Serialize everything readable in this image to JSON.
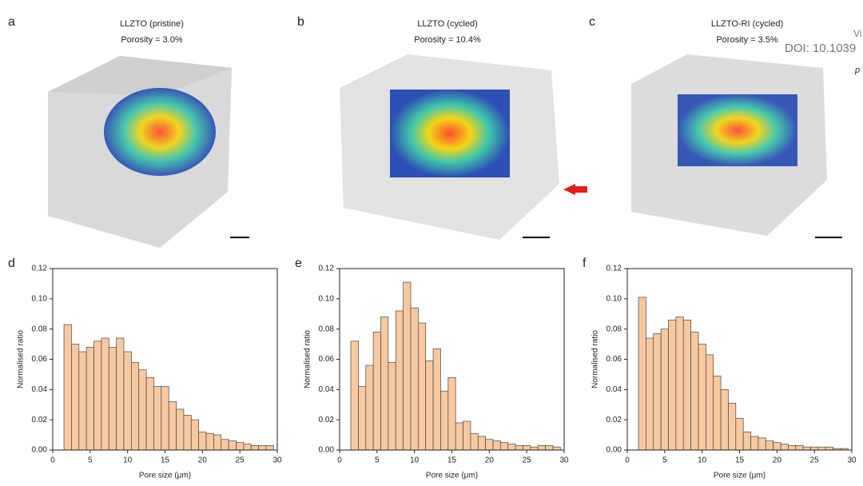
{
  "image_panels": [
    {
      "letter": "a",
      "title": "LLZTO (pristine)",
      "subtitle": "Porosity = 3.0%"
    },
    {
      "letter": "b",
      "title": "LLZTO (cycled)",
      "subtitle": "Porosity = 10.4%"
    },
    {
      "letter": "c",
      "title": "LLZTO-RI (cycled)",
      "subtitle": "Porosity = 3.5%"
    }
  ],
  "watermark": {
    "line1": "Vi",
    "line2": "DOI: 10.1039",
    "line3": "p"
  },
  "chart_data": [
    {
      "type": "histogram",
      "panel": "d",
      "xlabel": "Pore size (μm)",
      "ylabel": "Normalised ratio",
      "color": "#f8c9a0",
      "bins": [
        1.5,
        2.5,
        3.5,
        4.5,
        5.5,
        6.5,
        7.5,
        8.5,
        9.5,
        10.5,
        11.5,
        12.5,
        13.5,
        14.5,
        15.5,
        16.5,
        17.5,
        18.5,
        19.5,
        20.5,
        21.5,
        22.5,
        23.5,
        24.5,
        25.5,
        26.5,
        27.5,
        28.5,
        29.5
      ],
      "values": [
        0.083,
        0.07,
        0.065,
        0.068,
        0.072,
        0.074,
        0.068,
        0.074,
        0.065,
        0.058,
        0.053,
        0.048,
        0.042,
        0.042,
        0.032,
        0.027,
        0.023,
        0.02,
        0.012,
        0.011,
        0.01,
        0.007,
        0.006,
        0.005,
        0.004,
        0.003,
        0.003,
        0.003
      ],
      "xlim": [
        0,
        30
      ],
      "xticks": [
        0,
        5,
        10,
        15,
        20,
        25,
        30
      ],
      "ylim": [
        0,
        0.12
      ],
      "yticks": [
        {
          "value": 0,
          "label": "0.00"
        },
        {
          "value": 0.02,
          "label": "0.02"
        },
        {
          "value": 0.04,
          "label": "0.04"
        },
        {
          "value": 0.06,
          "label": "0.06"
        },
        {
          "value": 0.08,
          "label": "0.08"
        },
        {
          "value": 0.1,
          "label": "0.10"
        },
        {
          "value": 0.12,
          "label": "0.12"
        }
      ]
    },
    {
      "type": "histogram",
      "panel": "e",
      "xlabel": "Pore size (μm)",
      "ylabel": "Normalised ratio",
      "color": "#f8c9a0",
      "bins": [
        1.5,
        2.5,
        3.5,
        4.5,
        5.5,
        6.5,
        7.5,
        8.5,
        9.5,
        10.5,
        11.5,
        12.5,
        13.5,
        14.5,
        15.5,
        16.5,
        17.5,
        18.5,
        19.5,
        20.5,
        21.5,
        22.5,
        23.5,
        24.5,
        25.5,
        26.5,
        27.5,
        28.5,
        29.5
      ],
      "values": [
        0.072,
        0.042,
        0.056,
        0.078,
        0.088,
        0.058,
        0.092,
        0.111,
        0.094,
        0.084,
        0.059,
        0.067,
        0.039,
        0.048,
        0.018,
        0.019,
        0.011,
        0.009,
        0.007,
        0.006,
        0.005,
        0.004,
        0.003,
        0.003,
        0.002,
        0.003,
        0.003,
        0.002
      ],
      "xlim": [
        0,
        30
      ],
      "xticks": [
        0,
        5,
        10,
        15,
        20,
        25,
        30
      ],
      "ylim": [
        0,
        0.12
      ],
      "yticks": [
        {
          "value": 0,
          "label": "0.00"
        },
        {
          "value": 0.02,
          "label": "0.02"
        },
        {
          "value": 0.04,
          "label": "0.04"
        },
        {
          "value": 0.06,
          "label": "0.06"
        },
        {
          "value": 0.08,
          "label": "0.08"
        },
        {
          "value": 0.1,
          "label": "0.10"
        },
        {
          "value": 0.12,
          "label": "0.12"
        }
      ]
    },
    {
      "type": "histogram",
      "panel": "f",
      "xlabel": "Pore size (μm)",
      "ylabel": "Normalised ratio",
      "color": "#f8c9a0",
      "bins": [
        1.5,
        2.5,
        3.5,
        4.5,
        5.5,
        6.5,
        7.5,
        8.5,
        9.5,
        10.5,
        11.5,
        12.5,
        13.5,
        14.5,
        15.5,
        16.5,
        17.5,
        18.5,
        19.5,
        20.5,
        21.5,
        22.5,
        23.5,
        24.5,
        25.5,
        26.5,
        27.5,
        28.5,
        29.5
      ],
      "values": [
        0.101,
        0.074,
        0.077,
        0.08,
        0.086,
        0.088,
        0.086,
        0.078,
        0.07,
        0.063,
        0.049,
        0.04,
        0.031,
        0.021,
        0.012,
        0.009,
        0.008,
        0.006,
        0.005,
        0.004,
        0.003,
        0.003,
        0.002,
        0.002,
        0.002,
        0.002,
        0.001,
        0.001
      ],
      "xlim": [
        0,
        30
      ],
      "xticks": [
        0,
        5,
        10,
        15,
        20,
        25,
        30
      ],
      "ylim": [
        0,
        0.12
      ],
      "yticks": [
        {
          "value": 0,
          "label": "0.00"
        },
        {
          "value": 0.02,
          "label": "0.02"
        },
        {
          "value": 0.04,
          "label": "0.04"
        },
        {
          "value": 0.06,
          "label": "0.06"
        },
        {
          "value": 0.08,
          "label": "0.08"
        },
        {
          "value": 0.1,
          "label": "0.10"
        },
        {
          "value": 0.12,
          "label": "0.12"
        }
      ]
    }
  ]
}
